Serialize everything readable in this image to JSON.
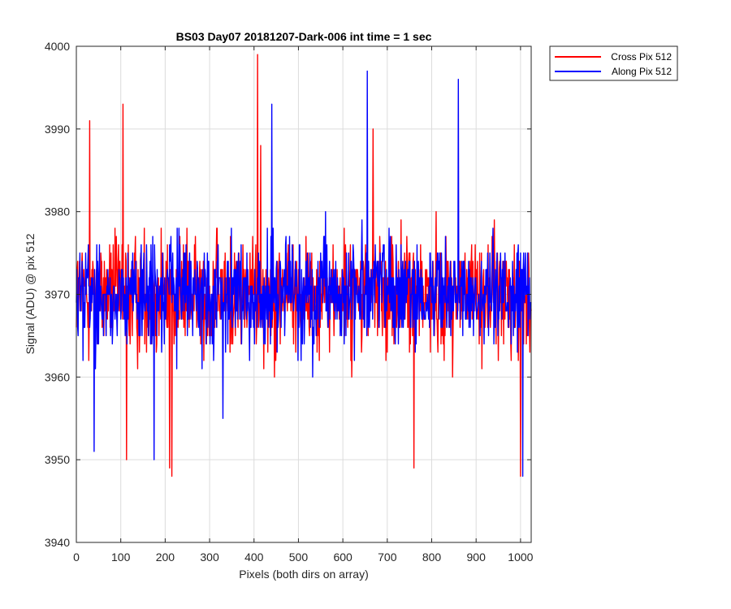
{
  "chart_data": {
    "type": "line",
    "title": "BS03 Day07 20181207-Dark-006 int time = 1 sec",
    "xlabel": "Pixels (both dirs on array)",
    "ylabel": "Signal (ADU) @ pix 512",
    "xlim": [
      0,
      1024
    ],
    "ylim": [
      3940,
      4000
    ],
    "xticks": [
      0,
      100,
      200,
      300,
      400,
      500,
      600,
      700,
      800,
      900,
      1000
    ],
    "yticks": [
      3940,
      3950,
      3960,
      3970,
      3980,
      3990,
      4000
    ],
    "grid": true,
    "legend_position": "outside-top-right",
    "series": [
      {
        "name": "Cross Pix 512",
        "color": "#ff0000",
        "mean": 3970,
        "notable_points": [
          [
            30,
            3991
          ],
          [
            105,
            3993
          ],
          [
            113,
            3950
          ],
          [
            210,
            3949
          ],
          [
            215,
            3948
          ],
          [
            408,
            3999
          ],
          [
            415,
            3988
          ],
          [
            620,
            3960
          ],
          [
            668,
            3990
          ],
          [
            760,
            3949
          ],
          [
            1000,
            3948
          ]
        ]
      },
      {
        "name": "Along Pix 512",
        "color": "#0000ff",
        "mean": 3970,
        "notable_points": [
          [
            40,
            3951
          ],
          [
            175,
            3950
          ],
          [
            330,
            3955
          ],
          [
            440,
            3993
          ],
          [
            540,
            3965
          ],
          [
            655,
            3997
          ],
          [
            860,
            3996
          ],
          [
            1005,
            3948
          ]
        ]
      }
    ]
  }
}
